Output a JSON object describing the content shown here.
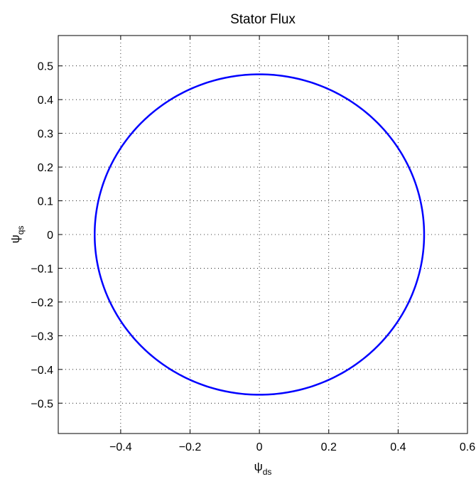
{
  "chart_data": {
    "type": "line",
    "title": "Stator Flux",
    "xlabel": {
      "symbol": "ψ",
      "subscript": "ds"
    },
    "ylabel": {
      "symbol": "ψ",
      "subscript": "qs"
    },
    "xlim": [
      -0.58,
      0.6
    ],
    "ylim": [
      -0.59,
      0.59
    ],
    "xticks": [
      -0.4,
      -0.2,
      0,
      0.2,
      0.4,
      0.6
    ],
    "xtick_labels": [
      "−0.4",
      "−0.2",
      "0",
      "0.2",
      "0.4",
      "0.6"
    ],
    "yticks": [
      0.5,
      0.4,
      0.3,
      0.2,
      0.1,
      0,
      -0.1,
      -0.2,
      -0.3,
      -0.4,
      -0.5
    ],
    "ytick_labels": [
      "0.5",
      "0.4",
      "0.3",
      "0.2",
      "0.1",
      "0",
      "−0.1",
      "−0.2",
      "−0.3",
      "−0.4",
      "−0.5"
    ],
    "grid": true,
    "series": [
      {
        "color": "#0000ff",
        "shape": "circle",
        "center": [
          0,
          0
        ],
        "radius": 0.475
      }
    ]
  }
}
